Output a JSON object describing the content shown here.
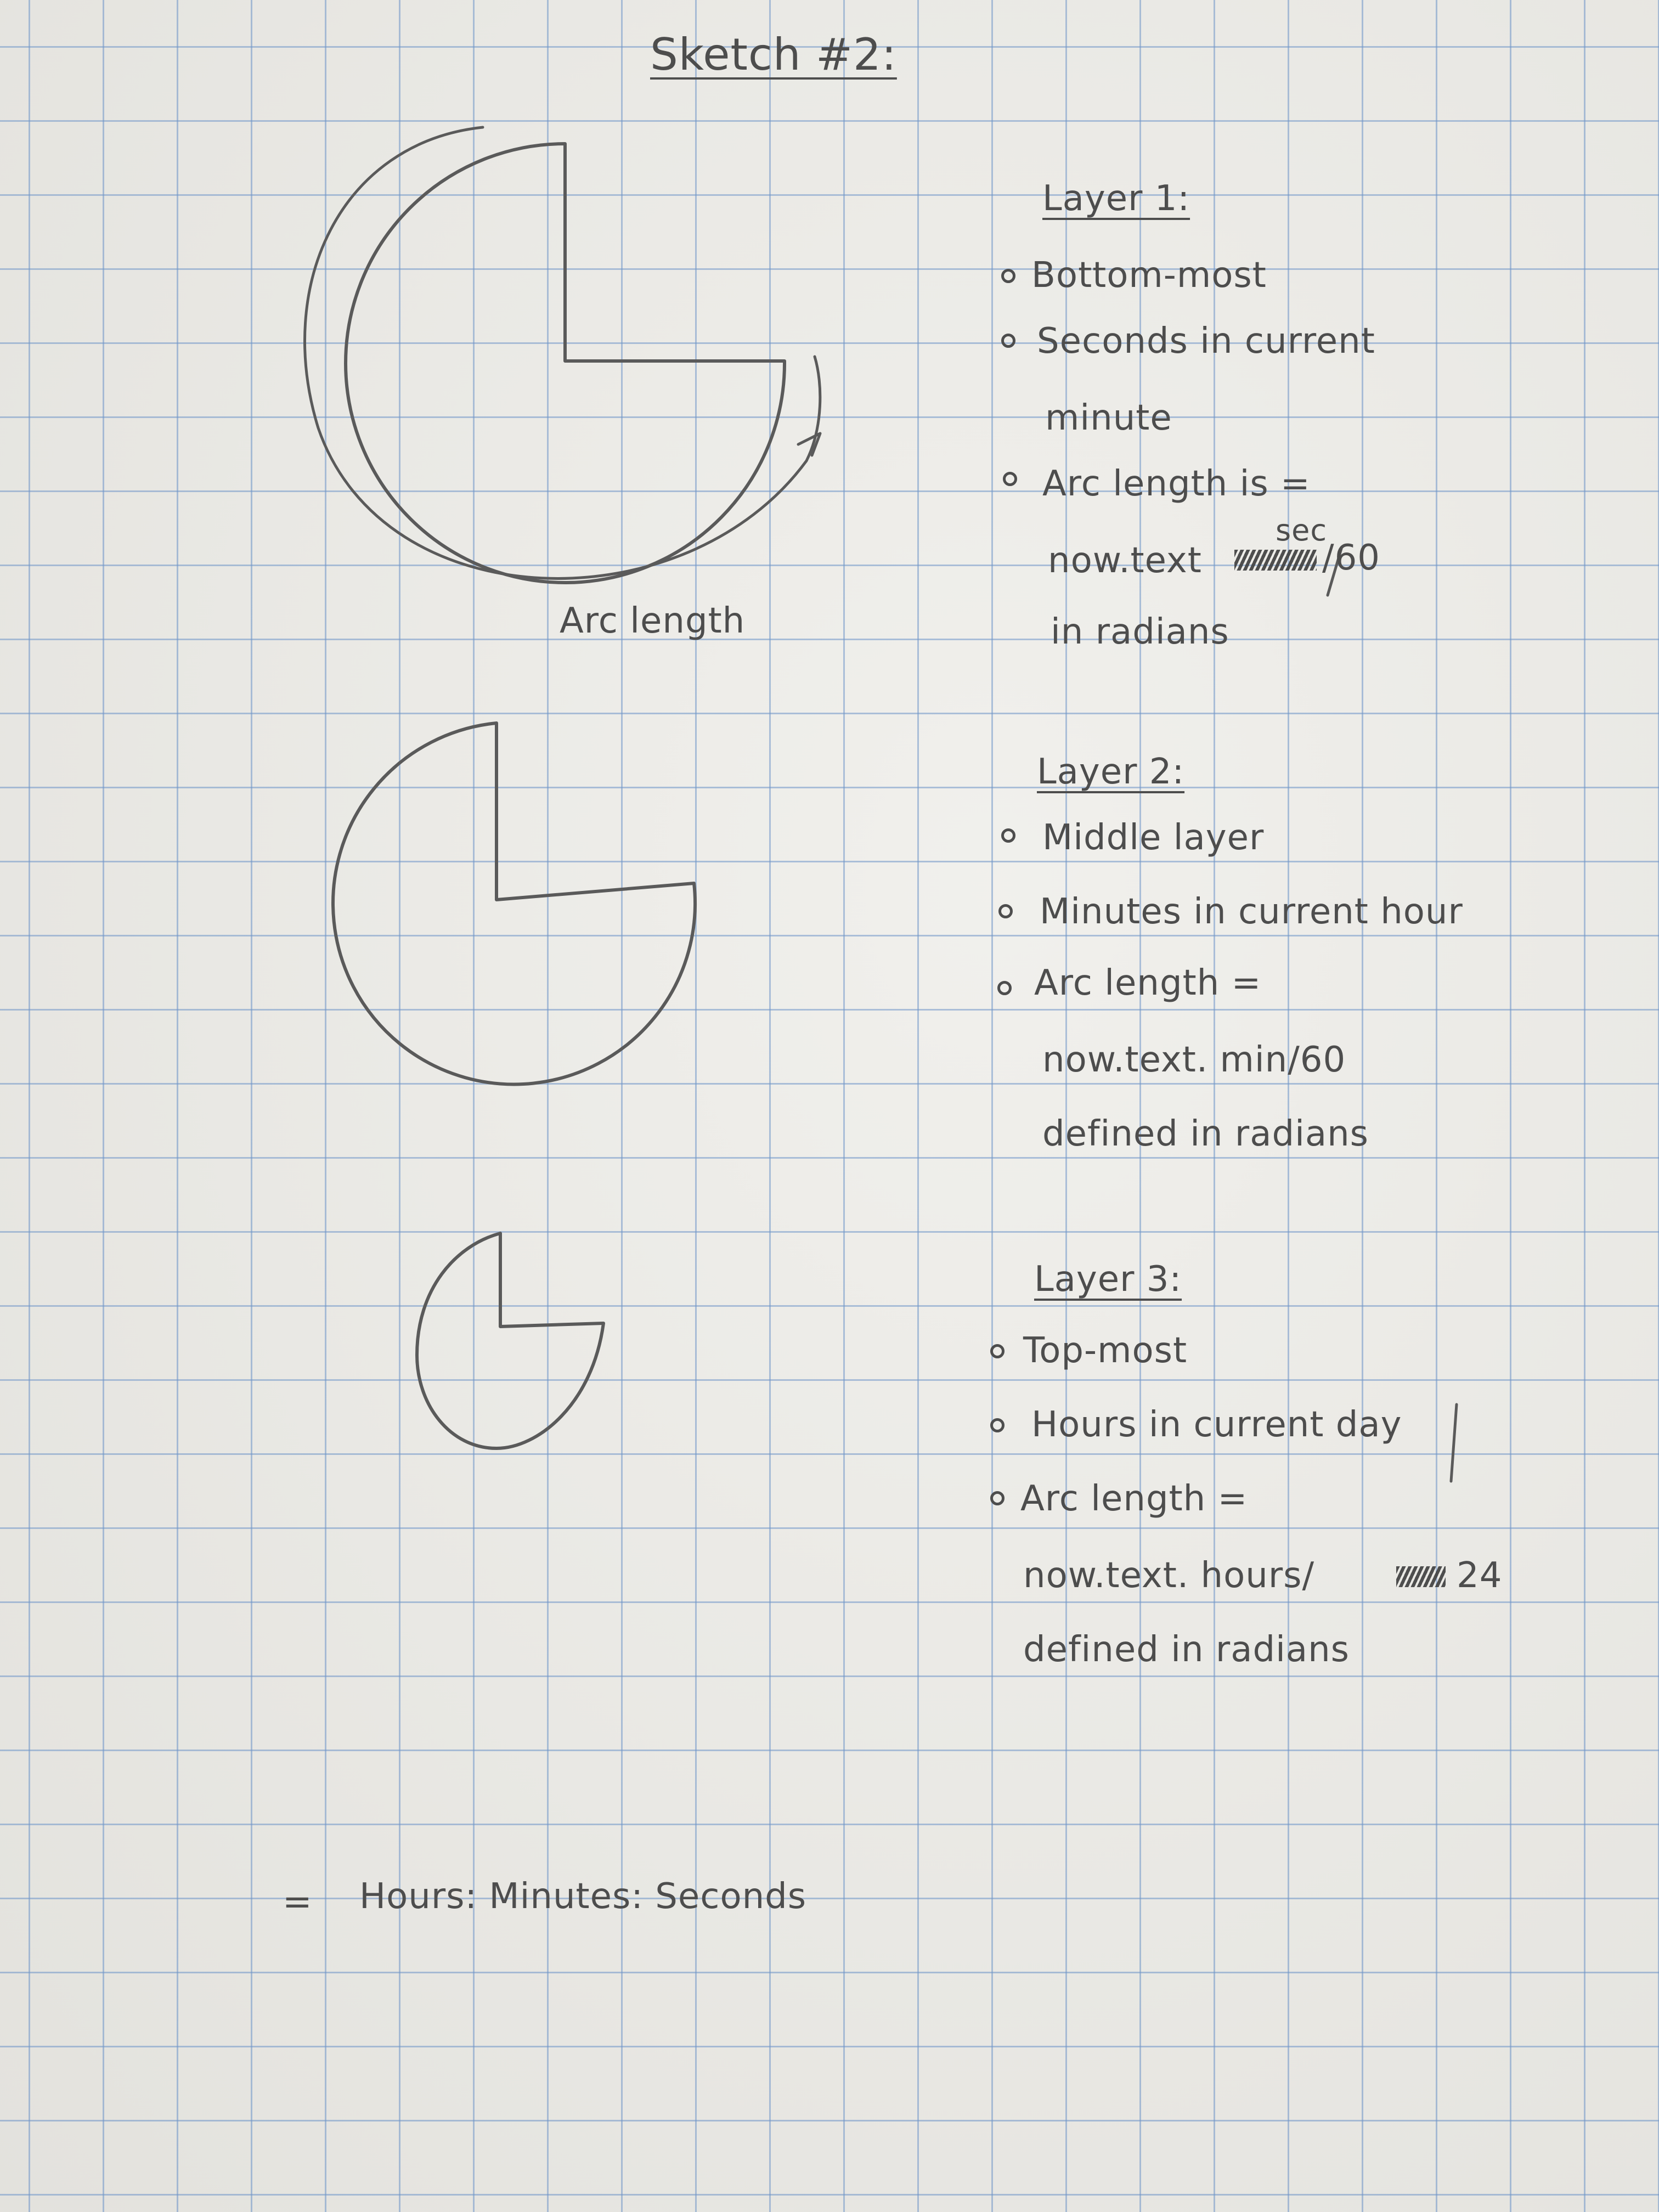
{
  "title": "Sketch #2:",
  "diagram_label": "Arc length",
  "layers": [
    {
      "heading": "Layer 1:",
      "items": [
        "Bottom-most",
        "Seconds in current",
        "minute",
        "Arc length is =",
        "now.text",
        "/60",
        "in radians"
      ],
      "correction": "sec"
    },
    {
      "heading": "Layer 2:",
      "items": [
        "Middle layer",
        "Minutes in current hour",
        "Arc length =",
        "now.text. min/60",
        "defined in radians"
      ]
    },
    {
      "heading": "Layer 3:",
      "items": [
        "Top-most",
        "Hours in current day",
        "Arc length =",
        "now.text. hours/",
        "24",
        "defined in radians"
      ]
    }
  ],
  "footer": {
    "equals": "=",
    "formula": "Hours: Minutes: Seconds"
  }
}
